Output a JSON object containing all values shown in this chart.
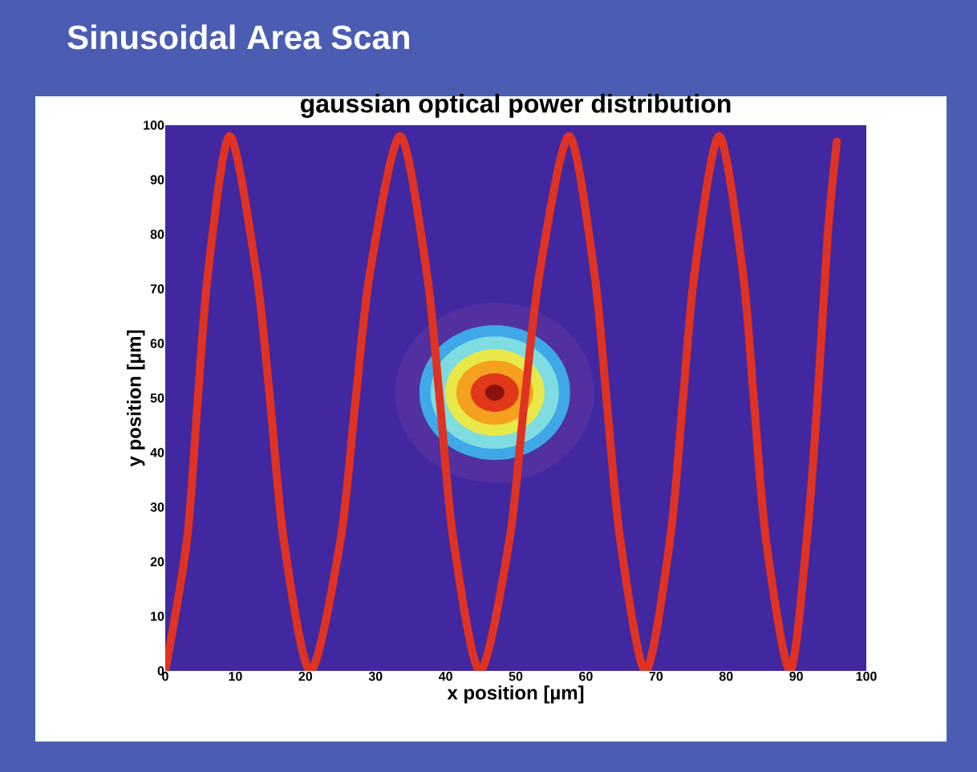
{
  "chart_data": {
    "type": "line",
    "title": "Sinusoidal Area Scan",
    "subtitle": "gaussian optical power distribution",
    "xlabel": "x position [µm]",
    "ylabel": "y position  [µm]",
    "x": [
      0,
      3.1,
      4.6,
      6.1,
      9.2,
      13.0,
      15.0,
      16.9,
      20.7,
      25.0,
      27.1,
      29.2,
      33.5,
      37.3,
      39.2,
      41.1,
      44.9,
      49.1,
      51.2,
      53.4,
      57.6,
      61.2,
      63.0,
      64.9,
      68.5,
      72.0,
      73.8,
      75.5,
      79.0,
      82.4,
      84.0,
      85.7,
      89.1,
      91.5,
      93.0,
      94.5,
      95.8
    ],
    "series": [
      {
        "color": "#e03222",
        "values": [
          0,
          24,
          49,
          73,
          98,
          73,
          49,
          24,
          0,
          24,
          49,
          73,
          98,
          73,
          49,
          24,
          0,
          24,
          49,
          73,
          98,
          73,
          49,
          24,
          0,
          24,
          49,
          73,
          98,
          73,
          49,
          24,
          0,
          24,
          49,
          80,
          97
        ]
      }
    ],
    "xlim": [
      0,
      100
    ],
    "ylim": [
      0,
      100
    ],
    "xticks": [
      0,
      10,
      20,
      30,
      40,
      50,
      60,
      70,
      80,
      90,
      100
    ],
    "yticks": [
      0,
      10,
      20,
      30,
      40,
      50,
      60,
      70,
      80,
      90,
      100
    ],
    "line_style": "solid"
  }
}
